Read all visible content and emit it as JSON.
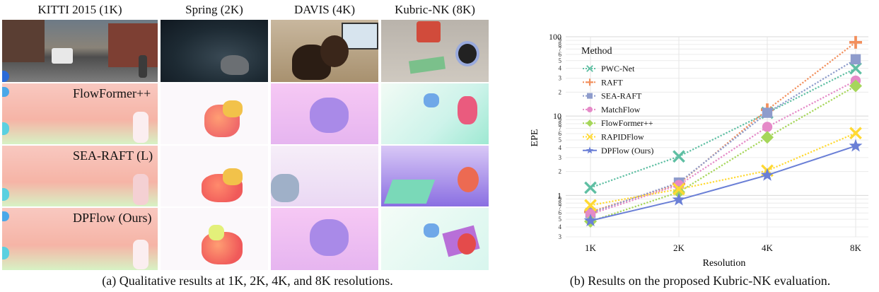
{
  "panel_a": {
    "columns": [
      "KITTI 2015 (1K)",
      "Spring (2K)",
      "DAVIS (4K)",
      "Kubric-NK (8K)"
    ],
    "rows": [
      "FlowFormer++",
      "SEA-RAFT (L)",
      "DPFlow (Ours)"
    ],
    "caption": "(a) Qualitative results at 1K, 2K, 4K, and 8K resolutions."
  },
  "panel_b": {
    "caption": "(b) Results on the proposed Kubric-NK evaluation."
  },
  "chart_data": {
    "type": "line",
    "xlabel": "Resolution",
    "ylabel": "EPE",
    "legend_title": "Method",
    "legend_position": "top-left",
    "y_scale": "log",
    "ylim": [
      0.3,
      100
    ],
    "grid": true,
    "categories": [
      "1K",
      "2K",
      "4K",
      "8K"
    ],
    "y_major_ticks": [
      {
        "v": 1,
        "label": "1"
      },
      {
        "v": 10,
        "label": "10"
      },
      {
        "v": 100,
        "label": "100"
      }
    ],
    "y_minor_ticks": [
      {
        "v": 0.3,
        "label": "3"
      },
      {
        "v": 0.4,
        "label": "4"
      },
      {
        "v": 0.5,
        "label": "5"
      },
      {
        "v": 0.6,
        "label": "6"
      },
      {
        "v": 0.7,
        "label": "7"
      },
      {
        "v": 0.8,
        "label": "8"
      },
      {
        "v": 0.9,
        "label": "9"
      },
      {
        "v": 2,
        "label": "2"
      },
      {
        "v": 3,
        "label": "3"
      },
      {
        "v": 4,
        "label": "4"
      },
      {
        "v": 5,
        "label": "5"
      },
      {
        "v": 6,
        "label": "6"
      },
      {
        "v": 7,
        "label": "7"
      },
      {
        "v": 8,
        "label": "8"
      },
      {
        "v": 9,
        "label": "9"
      },
      {
        "v": 20,
        "label": "2"
      },
      {
        "v": 30,
        "label": "3"
      },
      {
        "v": 40,
        "label": "4"
      },
      {
        "v": 50,
        "label": "5"
      },
      {
        "v": 60,
        "label": "6"
      },
      {
        "v": 70,
        "label": "7"
      },
      {
        "v": 80,
        "label": "8"
      },
      {
        "v": 90,
        "label": "9"
      }
    ],
    "series": [
      {
        "name": "PWC-Net",
        "color": "#5fbfa3",
        "marker": "x",
        "dash": true,
        "values": [
          1.25,
          3.1,
          11,
          40
        ]
      },
      {
        "name": "RAFT",
        "color": "#f28f5c",
        "marker": "plus",
        "dash": true,
        "values": [
          0.62,
          1.4,
          12,
          85
        ]
      },
      {
        "name": "SEA-RAFT",
        "color": "#8e9ccc",
        "marker": "square",
        "dash": true,
        "values": [
          0.6,
          1.45,
          11,
          52
        ]
      },
      {
        "name": "MatchFlow",
        "color": "#e58ac8",
        "marker": "circle",
        "dash": true,
        "values": [
          0.58,
          1.35,
          7.3,
          28
        ]
      },
      {
        "name": "FlowFormer++",
        "color": "#a6d65a",
        "marker": "diamond",
        "dash": true,
        "values": [
          0.47,
          1.1,
          5.4,
          24
        ]
      },
      {
        "name": "RAPIDFlow",
        "color": "#ffd934",
        "marker": "x",
        "dash": true,
        "values": [
          0.75,
          1.2,
          2.05,
          6.1
        ]
      },
      {
        "name": "DPFlow (Ours)",
        "color": "#6a7fd6",
        "marker": "star",
        "dash": false,
        "values": [
          0.48,
          0.88,
          1.8,
          4.2
        ]
      }
    ]
  }
}
